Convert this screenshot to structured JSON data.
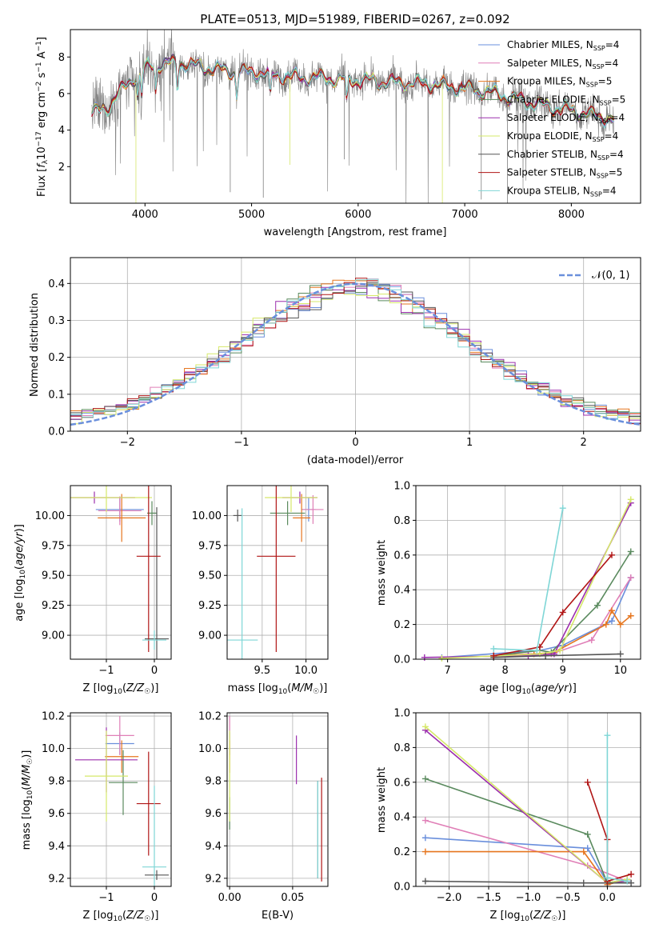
{
  "title": "PLATE=0513, MJD=51989, FIBERID=0267, z=0.092",
  "palette": {
    "c0": "#6a8fdc",
    "c1": "#e07fb7",
    "c2": "#e6761f",
    "c3": "#5a8a5e",
    "c4": "#9c2fae",
    "c5": "#d6e86a",
    "c6": "#555555",
    "c7": "#b01515",
    "c8": "#7fd6d6",
    "obs": "#808080"
  },
  "legend_labels": [
    "Chabrier MILES, N",
    "Salpeter MILES, N",
    "Kroupa MILES, N",
    "Chabrier ELODIE, N",
    "Salpeter ELODIE, N",
    "Kroupa ELODIE, N",
    "Chabrier STELIB, N",
    "Salpeter STELIB, N",
    "Kroupa STELIB, N"
  ],
  "legend_sub": "SSP",
  "legend_eq": [
    "=4",
    "=4",
    "=5",
    "=5",
    "=4",
    "=4",
    "=4",
    "=5",
    "=4"
  ],
  "hist_legend": "𝒩(0, 1)",
  "chart_data": [
    {
      "id": "spectrum",
      "type": "line",
      "xlabel": "wavelength [Angstrom, rest frame]",
      "ylabel": "Flux [f_λ 10^-17 erg cm^-2 s^-1 A^-1]",
      "xlim": [
        3300,
        8650
      ],
      "ylim": [
        0,
        9.5
      ],
      "xticks": [
        4000,
        5000,
        6000,
        7000,
        8000
      ],
      "yticks": [
        2,
        4,
        6,
        8
      ],
      "continuum": [
        [
          3500,
          4.9
        ],
        [
          3650,
          5.3
        ],
        [
          3800,
          6.3
        ],
        [
          3950,
          7.2
        ],
        [
          4100,
          7.6
        ],
        [
          4300,
          7.7
        ],
        [
          4500,
          7.5
        ],
        [
          4800,
          7.2
        ],
        [
          5000,
          7.2
        ],
        [
          5200,
          7.0
        ],
        [
          5500,
          6.9
        ],
        [
          5800,
          6.8
        ],
        [
          6100,
          6.7
        ],
        [
          6400,
          6.6
        ],
        [
          6700,
          6.5
        ],
        [
          7000,
          6.3
        ],
        [
          7300,
          6.0
        ],
        [
          7600,
          5.5
        ],
        [
          7900,
          5.2
        ],
        [
          8200,
          4.8
        ],
        [
          8400,
          4.6
        ]
      ],
      "absorption_lines": [
        [
          3934,
          5.4
        ],
        [
          3969,
          5.6
        ],
        [
          4102,
          6.5
        ],
        [
          4304,
          6.3
        ],
        [
          4861,
          6.2
        ],
        [
          5175,
          6.0
        ],
        [
          5893,
          6.1
        ]
      ],
      "grid": false
    },
    {
      "id": "residual_hist",
      "type": "histogram",
      "xlabel": "(data-model)/error",
      "ylabel": "Normed distribution",
      "xlim": [
        -2.5,
        2.5
      ],
      "ylim": [
        0,
        0.47
      ],
      "xticks": [
        -2,
        -1,
        0,
        1,
        2
      ],
      "yticks": [
        0.0,
        0.1,
        0.2,
        0.3,
        0.4
      ],
      "bin_width": 0.1,
      "reference_curve": "N(0,1)",
      "grid": true
    },
    {
      "id": "age_vs_Z",
      "type": "errorbar",
      "xlabel": "Z [log10(Z/Z☉)]",
      "ylabel": "age  [log10(age/yr)]",
      "xlim": [
        -1.75,
        0.35
      ],
      "ylim": [
        8.8,
        10.25
      ],
      "xticks": [
        -1,
        0
      ],
      "yticks": [
        9.0,
        9.25,
        9.5,
        9.75,
        10.0
      ],
      "points": [
        {
          "s": "c0",
          "x": -0.72,
          "y": 10.05,
          "xe": 0.5,
          "ye": 0.1
        },
        {
          "s": "c1",
          "x": -0.72,
          "y": 10.04,
          "xe": 0.45,
          "ye": 0.12
        },
        {
          "s": "c2",
          "x": -0.68,
          "y": 9.98,
          "xe": 0.5,
          "ye": 0.2
        },
        {
          "s": "c3",
          "x": -0.05,
          "y": 10.02,
          "xe": 0.1,
          "ye": 0.1
        },
        {
          "s": "c4",
          "x": -1.25,
          "y": 10.15,
          "xe": 0.85,
          "ye": 0.05
        },
        {
          "s": "c5",
          "x": -1.0,
          "y": 10.15,
          "xe": 0.95,
          "ye": 0.12
        },
        {
          "s": "c6",
          "x": 0.05,
          "y": 8.97,
          "xe": 0.25,
          "ye": 1.1
        },
        {
          "s": "c7",
          "x": -0.12,
          "y": 9.66,
          "xe": 0.25,
          "ye": 0.8
        },
        {
          "s": "c8",
          "x": 0.0,
          "y": 8.96,
          "xe": 0.25,
          "ye": 0.08
        }
      ],
      "grid": true
    },
    {
      "id": "age_vs_mass",
      "type": "errorbar",
      "xlabel": "mass [log10(M/M☉)]",
      "ylabel": "",
      "xlim": [
        9.1,
        10.25
      ],
      "ylim": [
        8.8,
        10.25
      ],
      "xticks": [
        9.5,
        10.0
      ],
      "yticks": [
        9.0,
        9.25,
        9.5,
        9.75,
        10.0
      ],
      "points": [
        {
          "s": "c0",
          "x": 10.03,
          "y": 10.05,
          "xe": 0.08,
          "ye": 0.1
        },
        {
          "s": "c1",
          "x": 10.08,
          "y": 10.05,
          "xe": 0.12,
          "ye": 0.12
        },
        {
          "s": "c2",
          "x": 9.95,
          "y": 9.98,
          "xe": 0.1,
          "ye": 0.2
        },
        {
          "s": "c3",
          "x": 9.79,
          "y": 10.02,
          "xe": 0.2,
          "ye": 0.1
        },
        {
          "s": "c4",
          "x": 9.93,
          "y": 10.15,
          "xe": 0.2,
          "ye": 0.05
        },
        {
          "s": "c5",
          "x": 9.83,
          "y": 10.15,
          "xe": 0.3,
          "ye": 0.12
        },
        {
          "s": "c6",
          "x": 9.22,
          "y": 10.0,
          "xe": 0.05,
          "ye": 0.05
        },
        {
          "s": "c7",
          "x": 9.66,
          "y": 9.66,
          "xe": 0.22,
          "ye": 0.8
        },
        {
          "s": "c8",
          "x": 9.27,
          "y": 8.96,
          "xe": 0.18,
          "ye": 1.1
        }
      ],
      "grid": true
    },
    {
      "id": "massweight_vs_age",
      "type": "line",
      "xlabel": "age  [log10(age/yr)]",
      "ylabel": "mass weight",
      "xlim": [
        6.45,
        10.35
      ],
      "ylim": [
        0,
        1.0
      ],
      "xticks": [
        7,
        8,
        9,
        10
      ],
      "yticks": [
        0.0,
        0.2,
        0.4,
        0.6,
        0.8,
        1.0
      ],
      "series": [
        {
          "s": "c0",
          "x": [
            6.9,
            8.6,
            9.0,
            9.85,
            10.18
          ],
          "y": [
            0.01,
            0.05,
            0.08,
            0.22,
            0.47
          ]
        },
        {
          "s": "c1",
          "x": [
            7.8,
            8.4,
            8.8,
            9.5,
            10.18
          ],
          "y": [
            0.02,
            0.03,
            0.03,
            0.11,
            0.47
          ]
        },
        {
          "s": "c2",
          "x": [
            7.8,
            8.5,
            8.85,
            9.75,
            9.85,
            10.0,
            10.18
          ],
          "y": [
            0.02,
            0.03,
            0.04,
            0.2,
            0.28,
            0.2,
            0.25
          ]
        },
        {
          "s": "c3",
          "x": [
            7.8,
            8.6,
            8.8,
            9.6,
            10.18
          ],
          "y": [
            0.02,
            0.05,
            0.04,
            0.31,
            0.62
          ]
        },
        {
          "s": "c4",
          "x": [
            6.6,
            8.4,
            8.85,
            10.18
          ],
          "y": [
            0.01,
            0.02,
            0.03,
            0.9
          ]
        },
        {
          "s": "c5",
          "x": [
            6.9,
            8.6,
            8.95,
            10.18
          ],
          "y": [
            0.005,
            0.03,
            0.05,
            0.92
          ]
        },
        {
          "s": "c6",
          "x": [
            7.8,
            8.7,
            10.0
          ],
          "y": [
            0.01,
            0.02,
            0.03
          ]
        },
        {
          "s": "c7",
          "x": [
            7.8,
            8.6,
            9.0,
            9.85
          ],
          "y": [
            0.02,
            0.07,
            0.27,
            0.6
          ]
        },
        {
          "s": "c8",
          "x": [
            7.8,
            8.55,
            9.0
          ],
          "y": [
            0.06,
            0.05,
            0.87
          ]
        }
      ],
      "grid": true
    },
    {
      "id": "mass_vs_Z",
      "type": "errorbar",
      "xlabel": "Z [log10(Z/Z☉)]",
      "ylabel": "mass [log10(M/M☉)]",
      "xlim": [
        -1.75,
        0.35
      ],
      "ylim": [
        9.15,
        10.22
      ],
      "xticks": [
        -1,
        0
      ],
      "yticks": [
        9.2,
        9.4,
        9.6,
        9.8,
        10.0,
        10.2
      ],
      "points": [
        {
          "s": "c0",
          "x": -0.72,
          "y": 10.03,
          "xe": 0.3,
          "ye": 0.07
        },
        {
          "s": "c1",
          "x": -0.72,
          "y": 10.08,
          "xe": 0.3,
          "ye": 0.12
        },
        {
          "s": "c2",
          "x": -0.68,
          "y": 9.95,
          "xe": 0.35,
          "ye": 0.1
        },
        {
          "s": "c3",
          "x": -0.65,
          "y": 9.79,
          "xe": 0.3,
          "ye": 0.2
        },
        {
          "s": "c4",
          "x": -1.0,
          "y": 9.93,
          "xe": 0.65,
          "ye": 0.2
        },
        {
          "s": "c5",
          "x": -1.0,
          "y": 9.83,
          "xe": 0.45,
          "ye": 0.28
        },
        {
          "s": "c6",
          "x": 0.05,
          "y": 9.22,
          "xe": 0.25,
          "ye": 0.03
        },
        {
          "s": "c7",
          "x": -0.12,
          "y": 9.66,
          "xe": 0.25,
          "ye": 0.32
        },
        {
          "s": "c8",
          "x": 0.0,
          "y": 9.27,
          "xe": 0.25,
          "ye": 0.5
        }
      ],
      "grid": true
    },
    {
      "id": "mass_vs_EBV",
      "type": "errorbar",
      "xlabel": "E(B-V)",
      "ylabel": "",
      "xlim": [
        -0.002,
        0.078
      ],
      "ylim": [
        9.15,
        10.22
      ],
      "xticks": [
        0.0,
        0.05
      ],
      "yticks": [
        9.2,
        9.4,
        9.6,
        9.8,
        10.0,
        10.2
      ],
      "points": [
        {
          "s": "c0",
          "x": 0.0,
          "y": 10.03,
          "xe": 0.0,
          "ye": 0.07
        },
        {
          "s": "c1",
          "x": 0.0,
          "y": 10.08,
          "xe": 0.0,
          "ye": 0.12
        },
        {
          "s": "c2",
          "x": 0.0,
          "y": 9.95,
          "xe": 0.0,
          "ye": 0.1
        },
        {
          "s": "c3",
          "x": 0.0,
          "y": 9.6,
          "xe": 0.0,
          "ye": 0.1
        },
        {
          "s": "c4",
          "x": 0.053,
          "y": 9.93,
          "xe": 0.0,
          "ye": 0.15
        },
        {
          "s": "c5",
          "x": 0.0,
          "y": 9.83,
          "xe": 0.0,
          "ye": 0.28
        },
        {
          "s": "c6",
          "x": 0.07,
          "y": 9.5,
          "xe": 0.0,
          "ye": 0.3
        },
        {
          "s": "c7",
          "x": 0.073,
          "y": 9.5,
          "xe": 0.0,
          "ye": 0.32
        },
        {
          "s": "c8",
          "x": 0.07,
          "y": 9.5,
          "xe": 0.0,
          "ye": 0.3
        }
      ],
      "grid": true
    },
    {
      "id": "massweight_vs_Z",
      "type": "line",
      "xlabel": "Z [log10(Z/Z☉)]",
      "ylabel": "mass weight",
      "xlim": [
        -2.42,
        0.42
      ],
      "ylim": [
        0,
        1.0
      ],
      "xticks": [
        -2.0,
        -1.5,
        -1.0,
        -0.5,
        0.0
      ],
      "yticks": [
        0.0,
        0.2,
        0.4,
        0.6,
        0.8,
        1.0
      ],
      "series": [
        {
          "s": "c0",
          "x": [
            -2.3,
            -0.25,
            0.0,
            0.25
          ],
          "y": [
            0.28,
            0.22,
            0.02,
            0.04
          ]
        },
        {
          "s": "c1",
          "x": [
            -2.3,
            -0.25,
            0.25
          ],
          "y": [
            0.38,
            0.12,
            0.03
          ]
        },
        {
          "s": "c2",
          "x": [
            -2.3,
            -0.3,
            0.0,
            0.25
          ],
          "y": [
            0.2,
            0.2,
            0.01,
            0.04
          ]
        },
        {
          "s": "c3",
          "x": [
            -2.3,
            -0.25,
            0.0,
            0.25
          ],
          "y": [
            0.62,
            0.3,
            0.02,
            0.04
          ]
        },
        {
          "s": "c4",
          "x": [
            -2.3,
            0.0,
            0.25
          ],
          "y": [
            0.9,
            0.02,
            0.03
          ]
        },
        {
          "s": "c5",
          "x": [
            -2.3,
            0.0,
            0.25
          ],
          "y": [
            0.92,
            0.02,
            0.04
          ]
        },
        {
          "s": "c6",
          "x": [
            -2.3,
            -0.3,
            0.0,
            0.3
          ],
          "y": [
            0.03,
            0.02,
            0.02,
            0.02
          ]
        },
        {
          "s": "c7",
          "x": [
            -0.25,
            0.0,
            0.0,
            0.3
          ],
          "y": [
            0.6,
            0.27,
            0.03,
            0.07
          ]
        },
        {
          "s": "c8",
          "x": [
            0.0,
            0.0,
            0.25
          ],
          "y": [
            0.87,
            0.05,
            0.03
          ]
        }
      ],
      "grid": true
    }
  ]
}
